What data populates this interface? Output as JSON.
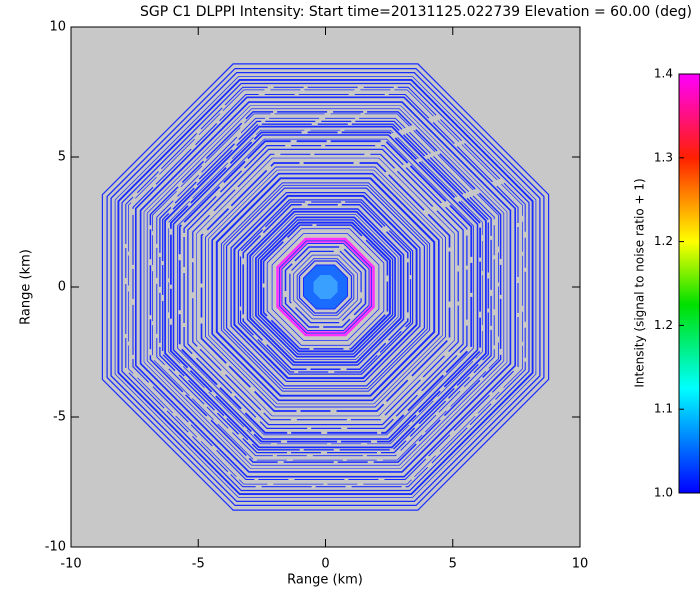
{
  "chart_data": {
    "type": "ppi",
    "title": "SGP C1 DLPPI Intensity: Start time=20131125.022739 Elevation = 60.00 (deg)",
    "xlabel": "Range (km)",
    "ylabel": "Range (km)",
    "xlim": [
      -10,
      10
    ],
    "ylim": [
      -10,
      10
    ],
    "xticks": [
      -10,
      -5,
      0,
      5,
      10
    ],
    "yticks": [
      -10,
      -5,
      0,
      5,
      10
    ],
    "background": "#c8c8c8",
    "ring_color": "#1a2cff",
    "colorbar": {
      "label": "Intensity (signal to noise ratio + 1)",
      "lim": [
        1.0,
        1.4
      ],
      "ticks": [
        {
          "value": 1.0,
          "label": "1.0"
        },
        {
          "value": 1.08,
          "label": "1.1"
        },
        {
          "value": 1.16,
          "label": "1.2"
        },
        {
          "value": 1.24,
          "label": "1.2"
        },
        {
          "value": 1.32,
          "label": "1.3"
        },
        1.4
      ]
    }
  }
}
